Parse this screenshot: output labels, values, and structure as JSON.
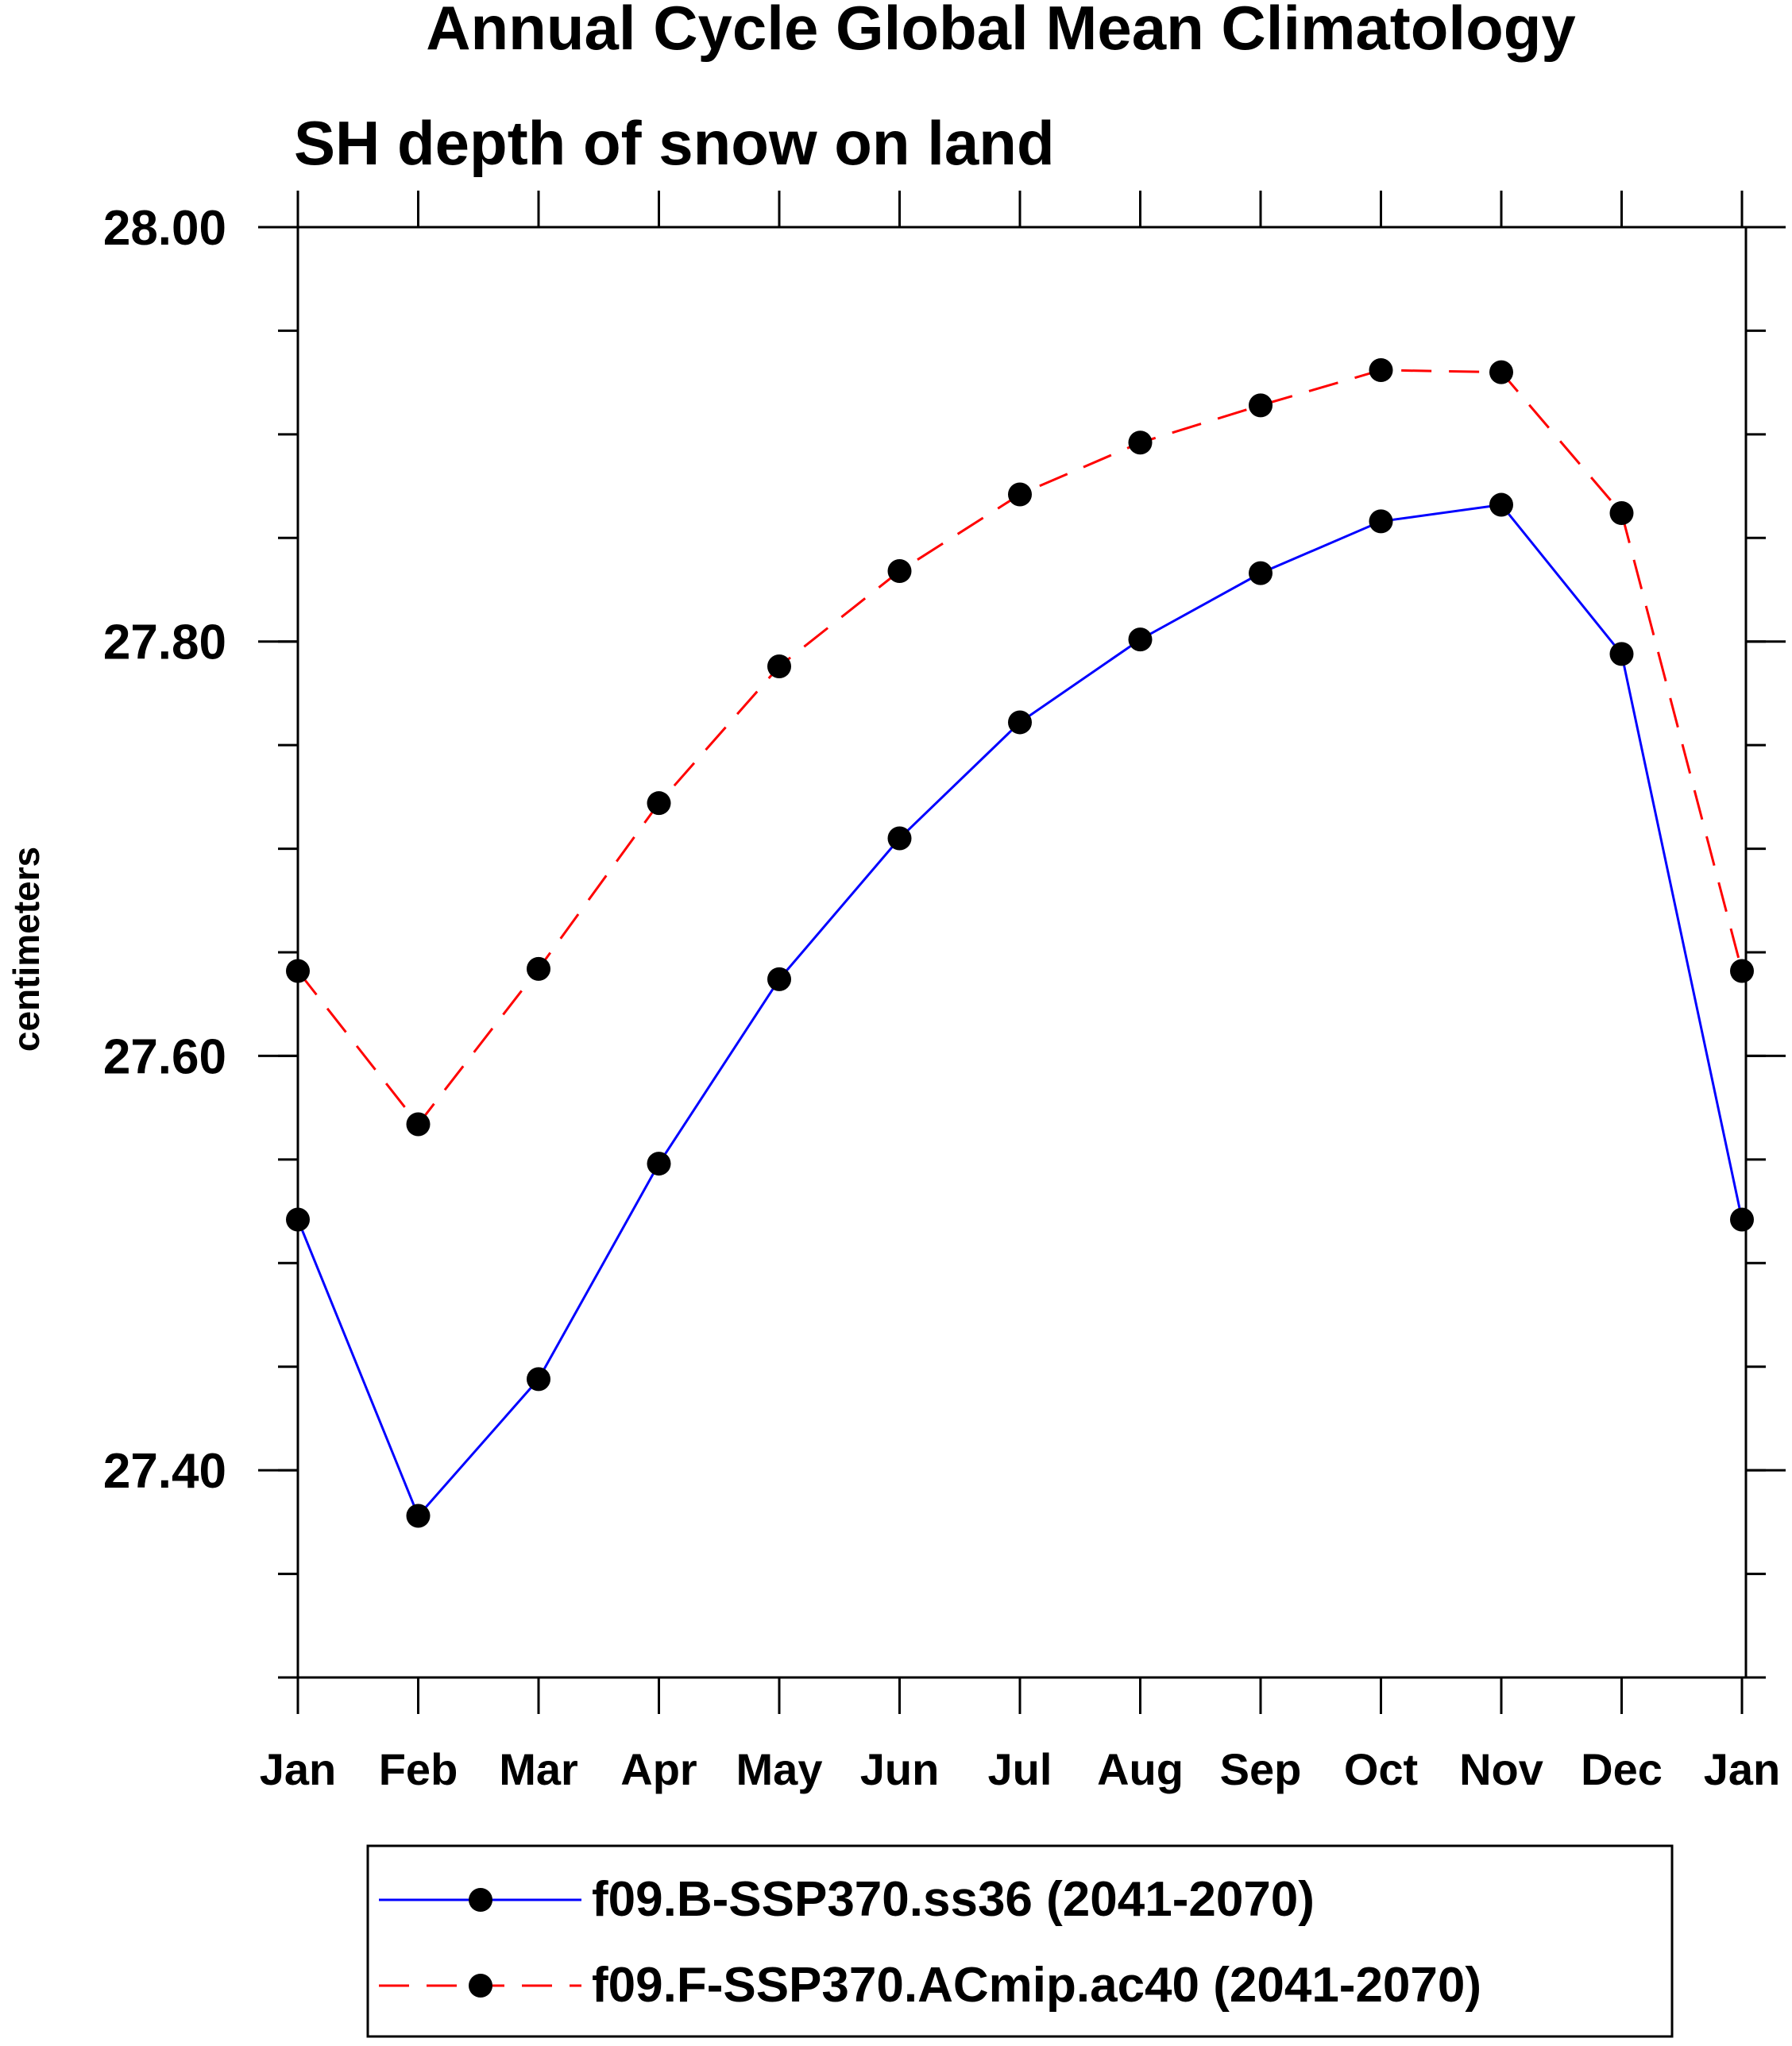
{
  "chart_data": {
    "type": "line",
    "title": "Annual Cycle Global Mean Climatology",
    "subtitle": "SH depth of snow on land",
    "xlabel": "",
    "ylabel": "centimeters",
    "categories": [
      "Jan",
      "Feb",
      "Mar",
      "Apr",
      "May",
      "Jun",
      "Jul",
      "Aug",
      "Sep",
      "Oct",
      "Nov",
      "Dec",
      "Jan"
    ],
    "ylim": [
      27.3,
      28.0
    ],
    "yticks": [
      "28.00",
      "27.80",
      "27.60",
      "27.40"
    ],
    "ytick_values": [
      28.0,
      27.8,
      27.6,
      27.4
    ],
    "yminor_step": 0.05,
    "grid": false,
    "legend_position": "bottom",
    "series": [
      {
        "name": "f09.B-SSP370.ss36 (2041-2070)",
        "color": "#0000ff",
        "dash": "solid",
        "marker": "filled-circle",
        "values": [
          27.521,
          27.378,
          27.444,
          27.548,
          27.637,
          27.705,
          27.761,
          27.801,
          27.833,
          27.858,
          27.866,
          27.794,
          27.521
        ]
      },
      {
        "name": "f09.F-SSP370.ACmip.ac40 (2041-2070)",
        "color": "#ff0000",
        "dash": "dashed",
        "marker": "filled-circle",
        "values": [
          27.641,
          27.567,
          27.642,
          27.722,
          27.788,
          27.834,
          27.871,
          27.896,
          27.914,
          27.931,
          27.93,
          27.862,
          27.641
        ]
      }
    ]
  }
}
